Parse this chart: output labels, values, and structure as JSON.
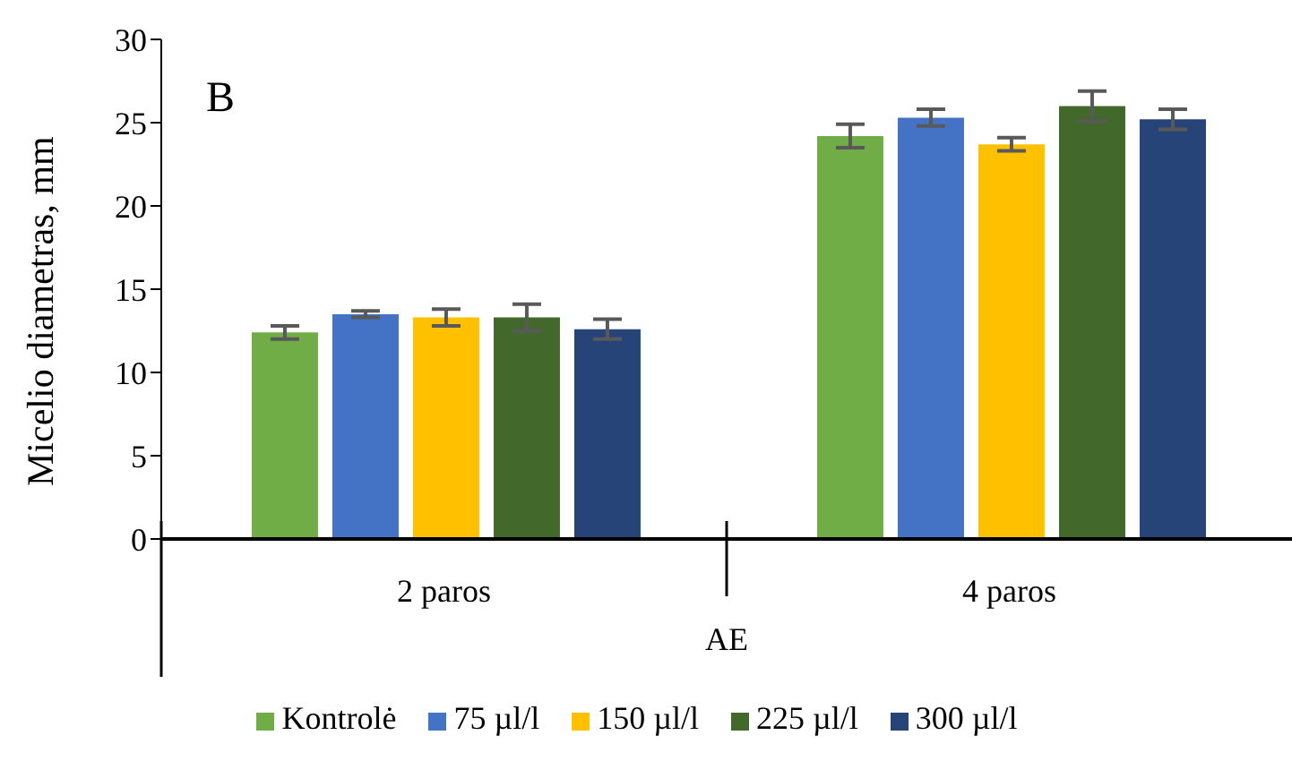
{
  "chart_data": {
    "type": "bar",
    "ylabel": "Micelio diametras, mm",
    "xlabel": "AE",
    "annotations": [
      "B"
    ],
    "categories": [
      "2 paros",
      "4 paros"
    ],
    "series": [
      {
        "name": "Kontrolė",
        "color": "#70ad47",
        "values": [
          12.4,
          24.2
        ],
        "errors": [
          0.4,
          0.7
        ]
      },
      {
        "name": "75 µl/l",
        "color": "#4472c4",
        "values": [
          13.5,
          25.3
        ],
        "errors": [
          0.2,
          0.5
        ]
      },
      {
        "name": "150 µl/l",
        "color": "#ffc000",
        "values": [
          13.3,
          23.7
        ],
        "errors": [
          0.5,
          0.4
        ]
      },
      {
        "name": "225 µl/l",
        "color": "#43682b",
        "values": [
          13.3,
          26.0
        ],
        "errors": [
          0.8,
          0.9
        ]
      },
      {
        "name": "300 µl/l",
        "color": "#264478",
        "values": [
          12.6,
          25.2
        ],
        "errors": [
          0.6,
          0.6
        ]
      }
    ],
    "ylim": [
      0,
      30
    ],
    "yticks": [
      0,
      5,
      10,
      15,
      20,
      25,
      30
    ],
    "grid": false,
    "legend": "bottom"
  }
}
